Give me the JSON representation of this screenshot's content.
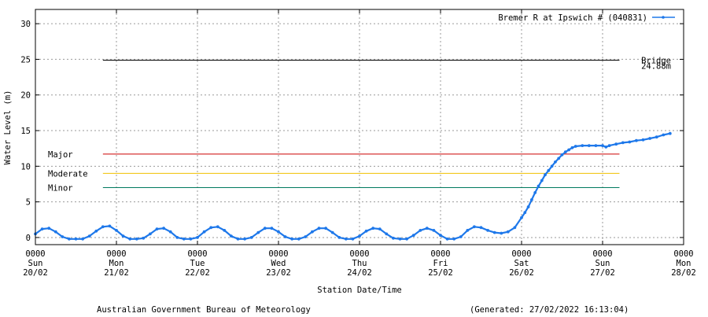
{
  "chart_data": {
    "type": "line",
    "series": [
      {
        "name": "Bremer R at Ipswich # (040831)",
        "color": "#1e78ea",
        "points": [
          [
            "2022-02-20T00:00",
            0.5
          ],
          [
            "2022-02-20T02:00",
            1.2
          ],
          [
            "2022-02-20T04:00",
            1.3
          ],
          [
            "2022-02-20T06:00",
            0.8
          ],
          [
            "2022-02-20T08:00",
            0.1
          ],
          [
            "2022-02-20T10:00",
            -0.2
          ],
          [
            "2022-02-20T12:00",
            -0.2
          ],
          [
            "2022-02-20T14:00",
            -0.2
          ],
          [
            "2022-02-20T16:00",
            0.2
          ],
          [
            "2022-02-20T18:00",
            0.9
          ],
          [
            "2022-02-20T20:00",
            1.5
          ],
          [
            "2022-02-20T22:00",
            1.6
          ],
          [
            "2022-02-21T00:00",
            1.0
          ],
          [
            "2022-02-21T02:00",
            0.2
          ],
          [
            "2022-02-21T04:00",
            -0.2
          ],
          [
            "2022-02-21T06:00",
            -0.2
          ],
          [
            "2022-02-21T08:00",
            -0.1
          ],
          [
            "2022-02-21T10:00",
            0.5
          ],
          [
            "2022-02-21T12:00",
            1.2
          ],
          [
            "2022-02-21T14:00",
            1.3
          ],
          [
            "2022-02-21T16:00",
            0.8
          ],
          [
            "2022-02-21T18:00",
            0.0
          ],
          [
            "2022-02-21T20:00",
            -0.2
          ],
          [
            "2022-02-21T22:00",
            -0.2
          ],
          [
            "2022-02-22T00:00",
            0.0
          ],
          [
            "2022-02-22T02:00",
            0.8
          ],
          [
            "2022-02-22T04:00",
            1.4
          ],
          [
            "2022-02-22T06:00",
            1.5
          ],
          [
            "2022-02-22T08:00",
            1.0
          ],
          [
            "2022-02-22T10:00",
            0.2
          ],
          [
            "2022-02-22T12:00",
            -0.2
          ],
          [
            "2022-02-22T14:00",
            -0.2
          ],
          [
            "2022-02-22T16:00",
            0.0
          ],
          [
            "2022-02-22T18:00",
            0.7
          ],
          [
            "2022-02-22T20:00",
            1.3
          ],
          [
            "2022-02-22T22:00",
            1.3
          ],
          [
            "2022-02-23T00:00",
            0.8
          ],
          [
            "2022-02-23T02:00",
            0.1
          ],
          [
            "2022-02-23T04:00",
            -0.2
          ],
          [
            "2022-02-23T06:00",
            -0.2
          ],
          [
            "2022-02-23T08:00",
            0.1
          ],
          [
            "2022-02-23T10:00",
            0.8
          ],
          [
            "2022-02-23T12:00",
            1.3
          ],
          [
            "2022-02-23T14:00",
            1.3
          ],
          [
            "2022-02-23T16:00",
            0.7
          ],
          [
            "2022-02-23T18:00",
            0.0
          ],
          [
            "2022-02-23T20:00",
            -0.2
          ],
          [
            "2022-02-23T22:00",
            -0.2
          ],
          [
            "2022-02-24T00:00",
            0.2
          ],
          [
            "2022-02-24T02:00",
            0.9
          ],
          [
            "2022-02-24T04:00",
            1.3
          ],
          [
            "2022-02-24T06:00",
            1.2
          ],
          [
            "2022-02-24T08:00",
            0.5
          ],
          [
            "2022-02-24T10:00",
            -0.1
          ],
          [
            "2022-02-24T12:00",
            -0.2
          ],
          [
            "2022-02-24T14:00",
            -0.2
          ],
          [
            "2022-02-24T16:00",
            0.3
          ],
          [
            "2022-02-24T18:00",
            1.0
          ],
          [
            "2022-02-24T20:00",
            1.3
          ],
          [
            "2022-02-24T22:00",
            1.0
          ],
          [
            "2022-02-25T00:00",
            0.3
          ],
          [
            "2022-02-25T02:00",
            -0.2
          ],
          [
            "2022-02-25T04:00",
            -0.2
          ],
          [
            "2022-02-25T06:00",
            0.1
          ],
          [
            "2022-02-25T08:00",
            1.0
          ],
          [
            "2022-02-25T10:00",
            1.5
          ],
          [
            "2022-02-25T12:00",
            1.4
          ],
          [
            "2022-02-25T14:00",
            1.0
          ],
          [
            "2022-02-25T16:00",
            0.7
          ],
          [
            "2022-02-25T18:00",
            0.6
          ],
          [
            "2022-02-25T20:00",
            0.8
          ],
          [
            "2022-02-25T22:00",
            1.4
          ],
          [
            "2022-02-26T00:00",
            2.8
          ],
          [
            "2022-02-26T01:00",
            3.5
          ],
          [
            "2022-02-26T02:00",
            4.3
          ],
          [
            "2022-02-26T03:00",
            5.3
          ],
          [
            "2022-02-26T04:00",
            6.3
          ],
          [
            "2022-02-26T05:00",
            7.2
          ],
          [
            "2022-02-26T06:00",
            8.0
          ],
          [
            "2022-02-26T07:00",
            8.8
          ],
          [
            "2022-02-26T08:00",
            9.4
          ],
          [
            "2022-02-26T09:00",
            10.0
          ],
          [
            "2022-02-26T10:00",
            10.6
          ],
          [
            "2022-02-26T11:00",
            11.1
          ],
          [
            "2022-02-26T12:00",
            11.6
          ],
          [
            "2022-02-26T13:00",
            12.0
          ],
          [
            "2022-02-26T14:00",
            12.3
          ],
          [
            "2022-02-26T15:00",
            12.6
          ],
          [
            "2022-02-26T16:00",
            12.8
          ],
          [
            "2022-02-26T18:00",
            12.9
          ],
          [
            "2022-02-26T20:00",
            12.9
          ],
          [
            "2022-02-26T22:00",
            12.9
          ],
          [
            "2022-02-27T00:00",
            12.9
          ],
          [
            "2022-02-27T01:00",
            12.7
          ],
          [
            "2022-02-27T02:00",
            12.9
          ],
          [
            "2022-02-27T04:00",
            13.1
          ],
          [
            "2022-02-27T06:00",
            13.3
          ],
          [
            "2022-02-27T08:00",
            13.4
          ],
          [
            "2022-02-27T10:00",
            13.6
          ],
          [
            "2022-02-27T12:00",
            13.7
          ],
          [
            "2022-02-27T14:00",
            13.9
          ],
          [
            "2022-02-27T16:00",
            14.1
          ],
          [
            "2022-02-27T18:00",
            14.4
          ],
          [
            "2022-02-27T20:00",
            14.6
          ]
        ]
      }
    ],
    "thresholds": [
      {
        "label": "Bridge",
        "value_label": "24.88m",
        "value": 24.88,
        "color": "#000000"
      },
      {
        "label": "Major",
        "value": 11.7,
        "color": "#cc0000"
      },
      {
        "label": "Moderate",
        "value": 9.0,
        "color": "#f0c000"
      },
      {
        "label": "Minor",
        "value": 7.0,
        "color": "#007a5e"
      }
    ],
    "threshold_span": [
      "2022-02-20T20:00",
      "2022-02-27T05:00"
    ],
    "ylabel": "Water Level (m)",
    "xlabel": "Station Date/Time",
    "ylim": [
      -1,
      32
    ],
    "yticks": [
      0,
      5,
      10,
      15,
      20,
      25,
      30
    ],
    "xlim": [
      "2022-02-20T00:00",
      "2022-02-28T00:00"
    ],
    "xticks": [
      {
        "date": "2022-02-20T00:00",
        "time": "0000",
        "day": "Sun",
        "dm": "20/02"
      },
      {
        "date": "2022-02-21T00:00",
        "time": "0000",
        "day": "Mon",
        "dm": "21/02"
      },
      {
        "date": "2022-02-22T00:00",
        "time": "0000",
        "day": "Tue",
        "dm": "22/02"
      },
      {
        "date": "2022-02-23T00:00",
        "time": "0000",
        "day": "Wed",
        "dm": "23/02"
      },
      {
        "date": "2022-02-24T00:00",
        "time": "0000",
        "day": "Thu",
        "dm": "24/02"
      },
      {
        "date": "2022-02-25T00:00",
        "time": "0000",
        "day": "Fri",
        "dm": "25/02"
      },
      {
        "date": "2022-02-26T00:00",
        "time": "0000",
        "day": "Sat",
        "dm": "26/02"
      },
      {
        "date": "2022-02-27T00:00",
        "time": "0000",
        "day": "Sun",
        "dm": "27/02"
      },
      {
        "date": "2022-02-28T00:00",
        "time": "0000",
        "day": "Mon",
        "dm": "28/02"
      }
    ],
    "grid": true,
    "legend_position": "top-right"
  },
  "footer": {
    "left": "Australian Government Bureau of Meteorology",
    "right": "(Generated: 27/02/2022 16:13:04)"
  }
}
